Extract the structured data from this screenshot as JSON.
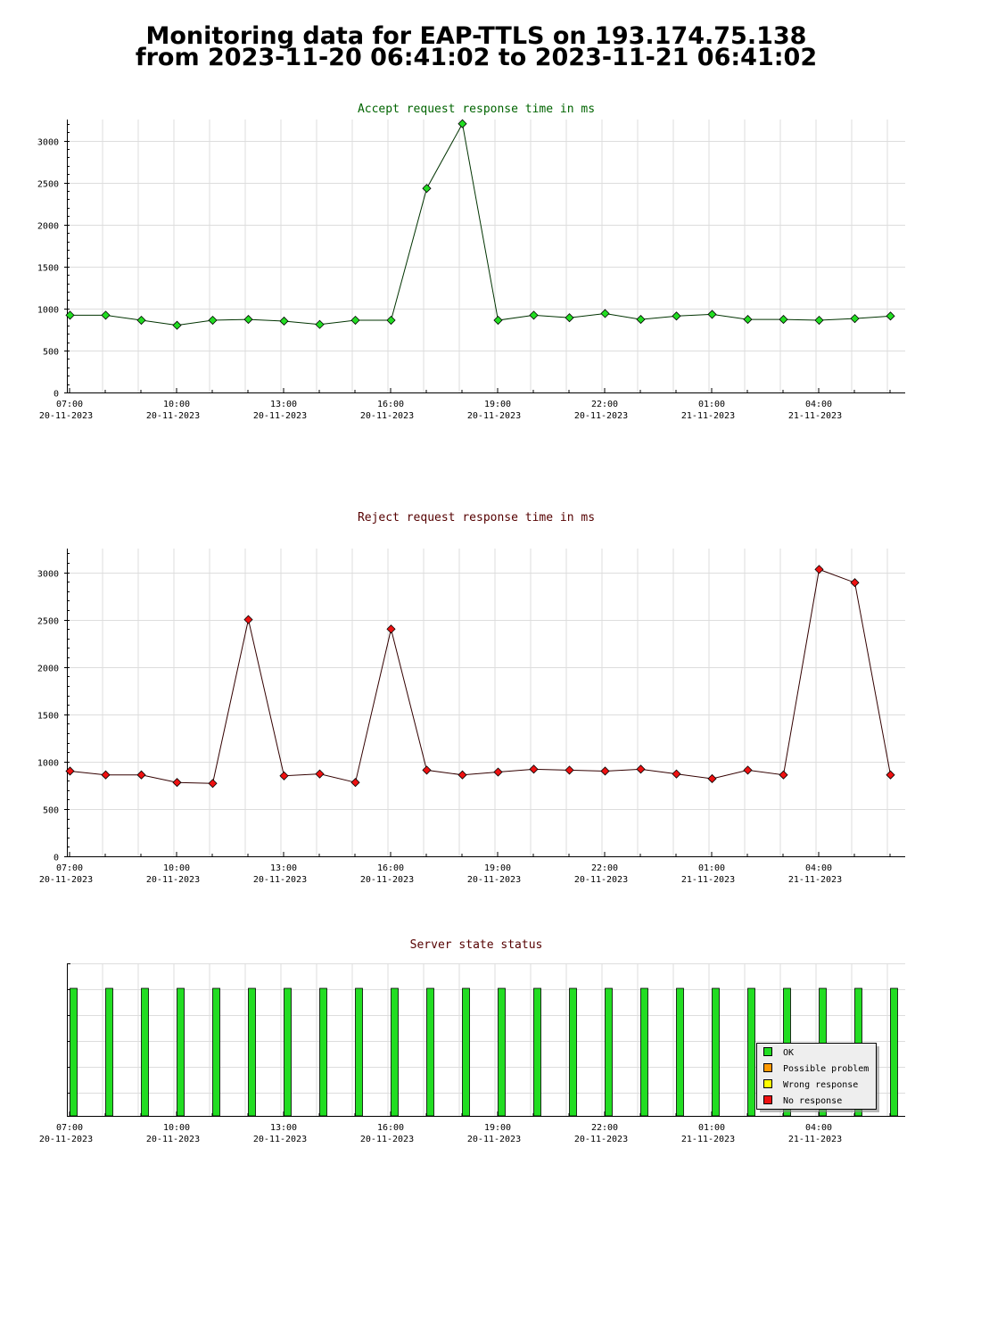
{
  "page": {
    "title_line1": "Monitoring data for EAP-TTLS on 193.174.75.138",
    "title_line2": "from 2023-11-20 06:41:02 to 2023-11-21 06:41:02"
  },
  "colors": {
    "accept_title": "#006400",
    "reject_title": "#550000",
    "accept_line": "#003300",
    "reject_line": "#330000",
    "ok": "#22dd22",
    "possible_problem": "#ff9900",
    "wrong_response": "#ffff00",
    "no_response": "#ee1111",
    "grid": "#dddddd"
  },
  "x_ticks": [
    {
      "time": "07:00",
      "date": "20-11-2023"
    },
    {
      "time": "10:00",
      "date": "20-11-2023"
    },
    {
      "time": "13:00",
      "date": "20-11-2023"
    },
    {
      "time": "16:00",
      "date": "20-11-2023"
    },
    {
      "time": "19:00",
      "date": "20-11-2023"
    },
    {
      "time": "22:00",
      "date": "20-11-2023"
    },
    {
      "time": "01:00",
      "date": "21-11-2023"
    },
    {
      "time": "04:00",
      "date": "21-11-2023"
    }
  ],
  "chart_data": [
    {
      "type": "line",
      "title": "Accept request response time in ms",
      "x": [
        "2023-11-20 06:41",
        "2023-11-20 07:41",
        "2023-11-20 08:41",
        "2023-11-20 09:41",
        "2023-11-20 10:41",
        "2023-11-20 11:41",
        "2023-11-20 12:41",
        "2023-11-20 13:41",
        "2023-11-20 14:41",
        "2023-11-20 15:41",
        "2023-11-20 16:41",
        "2023-11-20 17:41",
        "2023-11-20 18:41",
        "2023-11-20 19:41",
        "2023-11-20 20:41",
        "2023-11-20 21:41",
        "2023-11-20 22:41",
        "2023-11-20 23:41",
        "2023-11-21 00:41",
        "2023-11-21 01:41",
        "2023-11-21 02:41",
        "2023-11-21 03:41",
        "2023-11-21 04:41",
        "2023-11-21 05:41"
      ],
      "values": [
        920,
        920,
        860,
        800,
        860,
        870,
        850,
        810,
        860,
        860,
        2430,
        3200,
        860,
        920,
        890,
        940,
        870,
        910,
        930,
        870,
        870,
        860,
        880,
        910
      ],
      "ylim": [
        0,
        3250
      ],
      "yticks": [
        0,
        500,
        1000,
        1500,
        2000,
        2500,
        3000
      ],
      "grid": true
    },
    {
      "type": "line",
      "title": "Reject request response time in ms",
      "x": [
        "2023-11-20 06:41",
        "2023-11-20 07:41",
        "2023-11-20 08:41",
        "2023-11-20 09:41",
        "2023-11-20 10:41",
        "2023-11-20 11:41",
        "2023-11-20 12:41",
        "2023-11-20 13:41",
        "2023-11-20 14:41",
        "2023-11-20 15:41",
        "2023-11-20 16:41",
        "2023-11-20 17:41",
        "2023-11-20 18:41",
        "2023-11-20 19:41",
        "2023-11-20 20:41",
        "2023-11-20 21:41",
        "2023-11-20 22:41",
        "2023-11-20 23:41",
        "2023-11-21 00:41",
        "2023-11-21 01:41",
        "2023-11-21 02:41",
        "2023-11-21 03:41",
        "2023-11-21 04:41",
        "2023-11-21 05:41"
      ],
      "values": [
        900,
        860,
        860,
        780,
        770,
        2500,
        850,
        870,
        780,
        2400,
        910,
        860,
        890,
        920,
        910,
        900,
        920,
        870,
        820,
        910,
        860,
        3030,
        2890,
        860
      ],
      "ylim": [
        0,
        3250
      ],
      "yticks": [
        0,
        500,
        1000,
        1500,
        2000,
        2500,
        3000
      ],
      "grid": true
    },
    {
      "type": "bar",
      "title": "Server state status",
      "x": [
        "2023-11-20 06:41",
        "2023-11-20 07:41",
        "2023-11-20 08:41",
        "2023-11-20 09:41",
        "2023-11-20 10:41",
        "2023-11-20 11:41",
        "2023-11-20 12:41",
        "2023-11-20 13:41",
        "2023-11-20 14:41",
        "2023-11-20 15:41",
        "2023-11-20 16:41",
        "2023-11-20 17:41",
        "2023-11-20 18:41",
        "2023-11-20 19:41",
        "2023-11-20 20:41",
        "2023-11-20 21:41",
        "2023-11-20 22:41",
        "2023-11-20 23:41",
        "2023-11-21 00:41",
        "2023-11-21 01:41",
        "2023-11-21 02:41",
        "2023-11-21 03:41",
        "2023-11-21 04:41",
        "2023-11-21 05:41"
      ],
      "status": [
        "OK",
        "OK",
        "OK",
        "OK",
        "OK",
        "OK",
        "OK",
        "OK",
        "OK",
        "OK",
        "OK",
        "OK",
        "OK",
        "OK",
        "OK",
        "OK",
        "OK",
        "OK",
        "OK",
        "OK",
        "OK",
        "OK",
        "OK",
        "OK"
      ],
      "legend": [
        "OK",
        "Possible problem",
        "Wrong response",
        "No response"
      ],
      "legend_position": "bottom-right",
      "grid": true
    }
  ]
}
